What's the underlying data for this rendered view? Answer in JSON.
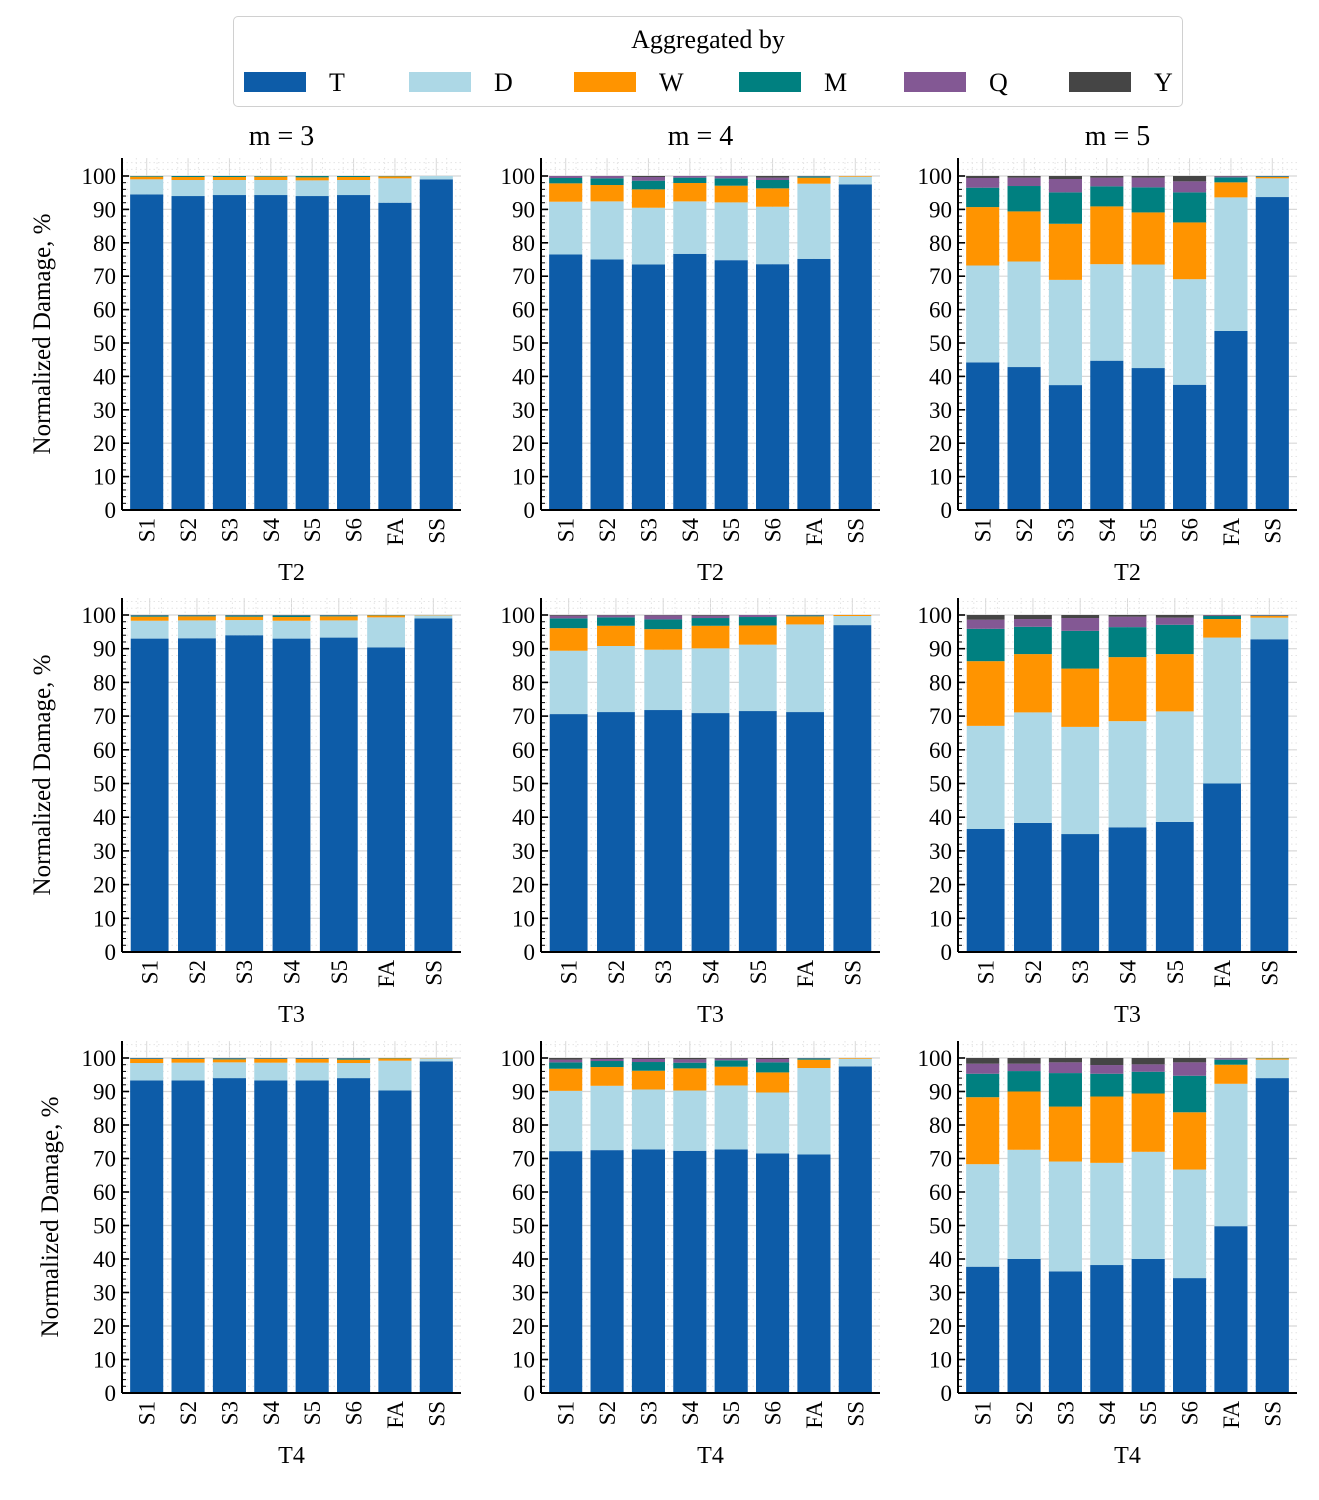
{
  "legend": {
    "title": "Aggregated by",
    "entries": [
      {
        "key": "T",
        "label": "T",
        "color": "#0d5ca8"
      },
      {
        "key": "D",
        "label": "D",
        "color": "#add8e6"
      },
      {
        "key": "W",
        "label": "W",
        "color": "#ff9400"
      },
      {
        "key": "M",
        "label": "M",
        "color": "#008080"
      },
      {
        "key": "Q",
        "label": "Q",
        "color": "#835894"
      },
      {
        "key": "Y",
        "label": "Y",
        "color": "#454545"
      }
    ]
  },
  "column_titles": [
    "m = 3",
    "m = 4",
    "m = 5"
  ],
  "ylabel": "Normalized Damage, %",
  "chart_data": [
    {
      "type": "bar",
      "stacked": true,
      "row": 0,
      "col": 0,
      "title": "m = 3",
      "xlabel": "T2",
      "ylabel": "Normalized Damage, %",
      "ylim": [
        0,
        100
      ],
      "yticks": [
        0,
        10,
        20,
        30,
        40,
        50,
        60,
        70,
        80,
        90,
        100
      ],
      "grid": true,
      "categories": [
        "S1",
        "S2",
        "S3",
        "S4",
        "S5",
        "S6",
        "FA",
        "SS"
      ],
      "series": [
        {
          "name": "T",
          "values": [
            94.5,
            94.0,
            94.3,
            94.3,
            94.0,
            94.3,
            92.0,
            99.0
          ]
        },
        {
          "name": "D",
          "values": [
            4.5,
            4.8,
            4.5,
            4.5,
            4.7,
            4.5,
            7.3,
            1.0
          ]
        },
        {
          "name": "W",
          "values": [
            0.8,
            0.9,
            0.9,
            1.0,
            0.9,
            0.9,
            0.6,
            0.0
          ]
        },
        {
          "name": "M",
          "values": [
            0.2,
            0.3,
            0.3,
            0.2,
            0.4,
            0.3,
            0.1,
            0.0
          ]
        },
        {
          "name": "Q",
          "values": [
            0,
            0,
            0,
            0,
            0,
            0,
            0,
            0
          ]
        },
        {
          "name": "Y",
          "values": [
            0,
            0,
            0,
            0,
            0,
            0,
            0,
            0
          ]
        }
      ]
    },
    {
      "type": "bar",
      "stacked": true,
      "row": 0,
      "col": 1,
      "title": "m = 4",
      "xlabel": "T2",
      "ylabel": "",
      "ylim": [
        0,
        100
      ],
      "yticks": [
        0,
        10,
        20,
        30,
        40,
        50,
        60,
        70,
        80,
        90,
        100
      ],
      "grid": true,
      "categories": [
        "S1",
        "S2",
        "S3",
        "S4",
        "S5",
        "S6",
        "FA",
        "SS"
      ],
      "series": [
        {
          "name": "T",
          "values": [
            76.5,
            75.0,
            73.5,
            76.7,
            74.8,
            73.6,
            75.2,
            97.5
          ]
        },
        {
          "name": "D",
          "values": [
            15.8,
            17.4,
            17.0,
            15.7,
            17.3,
            17.2,
            22.5,
            2.3
          ]
        },
        {
          "name": "W",
          "values": [
            5.5,
            4.9,
            5.5,
            5.5,
            5.0,
            5.5,
            1.8,
            0.2
          ]
        },
        {
          "name": "M",
          "values": [
            1.6,
            2.0,
            2.6,
            1.6,
            2.2,
            2.5,
            0.4,
            0.0
          ]
        },
        {
          "name": "Q",
          "values": [
            0.6,
            0.7,
            1.1,
            0.5,
            0.7,
            0.7,
            0.1,
            0.0
          ]
        },
        {
          "name": "Y",
          "values": [
            0.0,
            0.0,
            0.3,
            0.0,
            0.0,
            0.5,
            0.0,
            0.0
          ]
        }
      ]
    },
    {
      "type": "bar",
      "stacked": true,
      "row": 0,
      "col": 2,
      "title": "m = 5",
      "xlabel": "T2",
      "ylabel": "",
      "ylim": [
        0,
        100
      ],
      "yticks": [
        0,
        10,
        20,
        30,
        40,
        50,
        60,
        70,
        80,
        90,
        100
      ],
      "grid": true,
      "categories": [
        "S1",
        "S2",
        "S3",
        "S4",
        "S5",
        "S6",
        "FA",
        "SS"
      ],
      "series": [
        {
          "name": "T",
          "values": [
            44.2,
            42.8,
            37.4,
            44.7,
            42.5,
            37.5,
            53.6,
            93.7
          ]
        },
        {
          "name": "D",
          "values": [
            29.0,
            31.6,
            31.5,
            28.9,
            31.0,
            31.6,
            40.0,
            5.6
          ]
        },
        {
          "name": "W",
          "values": [
            17.5,
            15.0,
            16.8,
            17.3,
            15.6,
            17.0,
            4.5,
            0.4
          ]
        },
        {
          "name": "M",
          "values": [
            5.8,
            7.6,
            9.4,
            6.0,
            7.5,
            9.0,
            1.5,
            0.2
          ]
        },
        {
          "name": "Q",
          "values": [
            2.9,
            2.5,
            4.0,
            2.6,
            2.9,
            3.3,
            0.3,
            0.1
          ]
        },
        {
          "name": "Y",
          "values": [
            0.6,
            0.5,
            0.9,
            0.5,
            0.5,
            1.6,
            0.1,
            0.0
          ]
        }
      ]
    },
    {
      "type": "bar",
      "stacked": true,
      "row": 1,
      "col": 0,
      "title": "",
      "xlabel": "T3",
      "ylabel": "Normalized Damage, %",
      "ylim": [
        0,
        100
      ],
      "yticks": [
        0,
        10,
        20,
        30,
        40,
        50,
        60,
        70,
        80,
        90,
        100
      ],
      "grid": true,
      "categories": [
        "S1",
        "S2",
        "S3",
        "S4",
        "S5",
        "FA",
        "SS"
      ],
      "series": [
        {
          "name": "T",
          "values": [
            93.0,
            93.1,
            94.0,
            93.0,
            93.3,
            90.4,
            99.0
          ]
        },
        {
          "name": "D",
          "values": [
            5.3,
            5.3,
            4.5,
            5.3,
            5.1,
            8.9,
            0.9
          ]
        },
        {
          "name": "W",
          "values": [
            1.2,
            1.2,
            1.0,
            1.1,
            1.2,
            0.6,
            0.1
          ]
        },
        {
          "name": "M",
          "values": [
            0.4,
            0.3,
            0.4,
            0.5,
            0.3,
            0.1,
            0.0
          ]
        },
        {
          "name": "Q",
          "values": [
            0.1,
            0.1,
            0.1,
            0.1,
            0.1,
            0.0,
            0.0
          ]
        },
        {
          "name": "Y",
          "values": [
            0,
            0,
            0,
            0,
            0,
            0,
            0
          ]
        }
      ]
    },
    {
      "type": "bar",
      "stacked": true,
      "row": 1,
      "col": 1,
      "title": "",
      "xlabel": "T3",
      "ylabel": "",
      "ylim": [
        0,
        100
      ],
      "yticks": [
        0,
        10,
        20,
        30,
        40,
        50,
        60,
        70,
        80,
        90,
        100
      ],
      "grid": true,
      "categories": [
        "S1",
        "S2",
        "S3",
        "S4",
        "S5",
        "FA",
        "SS"
      ],
      "series": [
        {
          "name": "T",
          "values": [
            70.6,
            71.2,
            71.8,
            70.9,
            71.5,
            71.2,
            97.0
          ]
        },
        {
          "name": "D",
          "values": [
            18.8,
            19.6,
            17.9,
            19.2,
            19.7,
            26.0,
            2.7
          ]
        },
        {
          "name": "W",
          "values": [
            6.7,
            6.0,
            6.1,
            6.7,
            5.7,
            2.4,
            0.3
          ]
        },
        {
          "name": "M",
          "values": [
            2.9,
            2.5,
            2.9,
            2.3,
            2.5,
            0.3,
            0.0
          ]
        },
        {
          "name": "Q",
          "values": [
            0.8,
            0.6,
            1.2,
            0.7,
            0.6,
            0.1,
            0.0
          ]
        },
        {
          "name": "Y",
          "values": [
            0.2,
            0.1,
            0.1,
            0.2,
            0.0,
            0.0,
            0.0
          ]
        }
      ]
    },
    {
      "type": "bar",
      "stacked": true,
      "row": 1,
      "col": 2,
      "title": "",
      "xlabel": "T3",
      "ylabel": "",
      "ylim": [
        0,
        100
      ],
      "yticks": [
        0,
        10,
        20,
        30,
        40,
        50,
        60,
        70,
        80,
        90,
        100
      ],
      "grid": true,
      "categories": [
        "S1",
        "S2",
        "S3",
        "S4",
        "S5",
        "FA",
        "SS"
      ],
      "series": [
        {
          "name": "T",
          "values": [
            36.5,
            38.3,
            35.0,
            37.0,
            38.6,
            50.0,
            92.8
          ]
        },
        {
          "name": "D",
          "values": [
            30.6,
            32.8,
            31.8,
            31.5,
            32.8,
            43.3,
            6.4
          ]
        },
        {
          "name": "W",
          "values": [
            19.2,
            17.3,
            17.3,
            19.0,
            17.0,
            5.5,
            0.5
          ]
        },
        {
          "name": "M",
          "values": [
            9.6,
            8.1,
            11.2,
            8.9,
            8.7,
            0.9,
            0.1
          ]
        },
        {
          "name": "Q",
          "values": [
            2.7,
            2.3,
            3.8,
            3.1,
            2.1,
            0.2,
            0.1
          ]
        },
        {
          "name": "Y",
          "values": [
            1.4,
            1.2,
            0.9,
            0.5,
            0.8,
            0.1,
            0.1
          ]
        }
      ]
    },
    {
      "type": "bar",
      "stacked": true,
      "row": 2,
      "col": 0,
      "title": "",
      "xlabel": "T4",
      "ylabel": "Normalized Damage, %",
      "ylim": [
        0,
        100
      ],
      "yticks": [
        0,
        10,
        20,
        30,
        40,
        50,
        60,
        70,
        80,
        90,
        100
      ],
      "grid": true,
      "categories": [
        "S1",
        "S2",
        "S3",
        "S4",
        "S5",
        "S6",
        "FA",
        "SS"
      ],
      "series": [
        {
          "name": "T",
          "values": [
            93.3,
            93.3,
            94.0,
            93.3,
            93.3,
            94.0,
            90.3,
            99.0
          ]
        },
        {
          "name": "D",
          "values": [
            5.2,
            5.3,
            4.7,
            5.3,
            5.3,
            4.5,
            8.9,
            0.9
          ]
        },
        {
          "name": "W",
          "values": [
            1.2,
            1.1,
            0.9,
            1.1,
            1.1,
            1.0,
            0.7,
            0.1
          ]
        },
        {
          "name": "M",
          "values": [
            0.2,
            0.2,
            0.3,
            0.2,
            0.2,
            0.4,
            0.1,
            0.0
          ]
        },
        {
          "name": "Q",
          "values": [
            0.1,
            0.1,
            0.1,
            0.1,
            0.1,
            0.1,
            0.0,
            0.0
          ]
        },
        {
          "name": "Y",
          "values": [
            0,
            0,
            0,
            0,
            0,
            0,
            0,
            0
          ]
        }
      ]
    },
    {
      "type": "bar",
      "stacked": true,
      "row": 2,
      "col": 1,
      "title": "",
      "xlabel": "T4",
      "ylabel": "",
      "ylim": [
        0,
        100
      ],
      "yticks": [
        0,
        10,
        20,
        30,
        40,
        50,
        60,
        70,
        80,
        90,
        100
      ],
      "grid": true,
      "categories": [
        "S1",
        "S2",
        "S3",
        "S4",
        "S5",
        "S6",
        "FA",
        "SS"
      ],
      "series": [
        {
          "name": "T",
          "values": [
            72.2,
            72.5,
            72.7,
            72.3,
            72.7,
            71.5,
            71.2,
            97.5
          ]
        },
        {
          "name": "D",
          "values": [
            18.0,
            19.2,
            17.9,
            18.0,
            19.1,
            18.2,
            25.8,
            2.3
          ]
        },
        {
          "name": "W",
          "values": [
            6.6,
            5.6,
            5.6,
            6.6,
            5.6,
            6.0,
            2.5,
            0.2
          ]
        },
        {
          "name": "M",
          "values": [
            1.9,
            1.8,
            2.6,
            1.7,
            1.9,
            3.0,
            0.4,
            0.0
          ]
        },
        {
          "name": "Q",
          "values": [
            0.8,
            0.6,
            0.9,
            1.0,
            0.5,
            1.0,
            0.1,
            0.0
          ]
        },
        {
          "name": "Y",
          "values": [
            0.5,
            0.3,
            0.3,
            0.4,
            0.2,
            0.3,
            0.0,
            0.0
          ]
        }
      ]
    },
    {
      "type": "bar",
      "stacked": true,
      "row": 2,
      "col": 2,
      "title": "",
      "xlabel": "T4",
      "ylabel": "",
      "ylim": [
        0,
        100
      ],
      "yticks": [
        0,
        10,
        20,
        30,
        40,
        50,
        60,
        70,
        80,
        90,
        100
      ],
      "grid": true,
      "categories": [
        "S1",
        "S2",
        "S3",
        "S4",
        "S5",
        "S6",
        "FA",
        "SS"
      ],
      "series": [
        {
          "name": "T",
          "values": [
            37.7,
            40.0,
            36.3,
            38.2,
            40.0,
            34.3,
            49.8,
            94.0
          ]
        },
        {
          "name": "D",
          "values": [
            30.6,
            32.6,
            32.8,
            30.5,
            32.0,
            32.4,
            42.5,
            5.5
          ]
        },
        {
          "name": "W",
          "values": [
            20.0,
            17.4,
            16.4,
            19.8,
            17.4,
            17.1,
            5.7,
            0.4
          ]
        },
        {
          "name": "M",
          "values": [
            7.0,
            6.1,
            10.0,
            6.8,
            6.5,
            10.9,
            1.5,
            0.1
          ]
        },
        {
          "name": "Q",
          "values": [
            3.0,
            2.2,
            3.2,
            2.6,
            2.2,
            4.0,
            0.4,
            0.0
          ]
        },
        {
          "name": "Y",
          "values": [
            1.7,
            1.7,
            1.3,
            2.1,
            1.9,
            1.3,
            0.1,
            0.0
          ]
        }
      ]
    }
  ]
}
